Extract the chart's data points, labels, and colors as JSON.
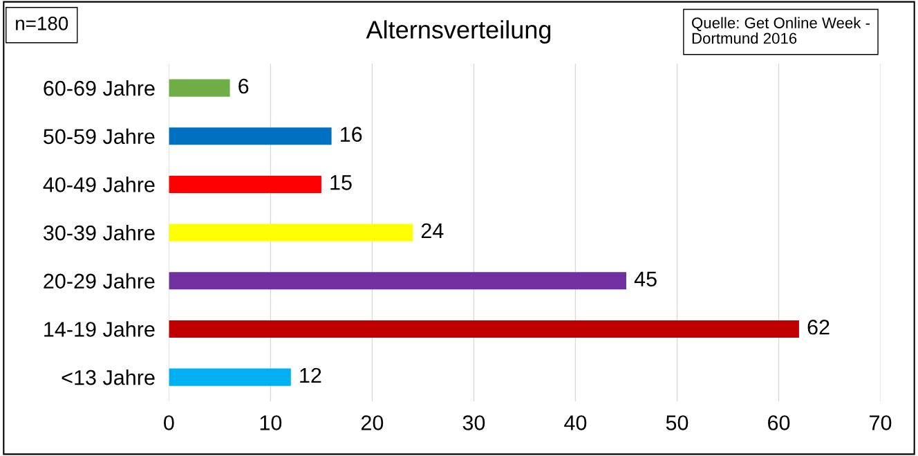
{
  "chart_data": {
    "type": "bar",
    "orientation": "horizontal",
    "title": "Alternsverteilung",
    "categories": [
      "60-69 Jahre",
      "50-59 Jahre",
      "40-49 Jahre",
      "30-39 Jahre",
      "20-29 Jahre",
      "14-19 Jahre",
      "<13 Jahre"
    ],
    "values": [
      6,
      16,
      15,
      24,
      45,
      62,
      12
    ],
    "colors": [
      "#70ad47",
      "#0070c0",
      "#ff0000",
      "#ffff00",
      "#7030a0",
      "#c00000",
      "#00b0f0"
    ],
    "xlim": [
      0,
      70
    ],
    "xticks": [
      0,
      10,
      20,
      30,
      40,
      50,
      60,
      70
    ],
    "grid": "x",
    "data_labels": true,
    "annotations": [
      "n=180",
      "Quelle: Get Online Week -\nDortmund 2016"
    ]
  }
}
